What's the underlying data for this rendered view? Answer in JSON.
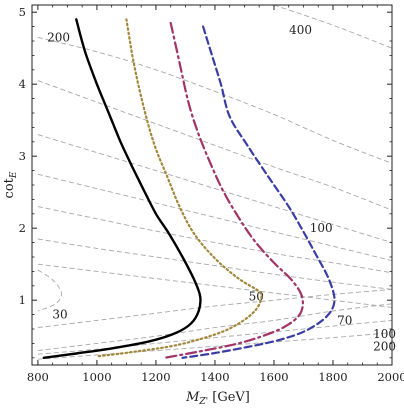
{
  "chart_data": {
    "type": "line",
    "xlabel": "M",
    "xlabel_sub": "Z'",
    "xlabel_unit": "[GeV]",
    "ylabel": "cot",
    "ylabel_sub": "E",
    "xlim": [
      780,
      2000
    ],
    "ylim": [
      0.1,
      5.1
    ],
    "xticks": [
      800,
      1000,
      1200,
      1400,
      1600,
      1800,
      2000
    ],
    "yticks": [
      1,
      2,
      3,
      4,
      5
    ],
    "grid": false,
    "colors": {
      "solid": "#000000",
      "dotted": "#a2873a",
      "dashdot": "#a13367",
      "dashed": "#3a3da3",
      "contour": "#a8a8a8"
    },
    "series": [
      {
        "style": "solid",
        "points": [
          [
            930,
            4.9
          ],
          [
            960,
            4.45
          ],
          [
            1000,
            4.0
          ],
          [
            1040,
            3.6
          ],
          [
            1080,
            3.2
          ],
          [
            1120,
            2.85
          ],
          [
            1160,
            2.52
          ],
          [
            1200,
            2.2
          ],
          [
            1245,
            1.92
          ],
          [
            1290,
            1.6
          ],
          [
            1330,
            1.28
          ],
          [
            1350,
            1.05
          ],
          [
            1345,
            0.85
          ],
          [
            1320,
            0.68
          ],
          [
            1270,
            0.55
          ],
          [
            1180,
            0.43
          ],
          [
            1050,
            0.33
          ],
          [
            930,
            0.26
          ],
          [
            820,
            0.2
          ]
        ]
      },
      {
        "style": "dotted",
        "points": [
          [
            1100,
            4.9
          ],
          [
            1120,
            4.4
          ],
          [
            1140,
            4.0
          ],
          [
            1170,
            3.5
          ],
          [
            1200,
            3.1
          ],
          [
            1240,
            2.7
          ],
          [
            1280,
            2.3
          ],
          [
            1330,
            1.92
          ],
          [
            1400,
            1.58
          ],
          [
            1480,
            1.3
          ],
          [
            1550,
            1.12
          ],
          [
            1555,
            1.0
          ],
          [
            1535,
            0.85
          ],
          [
            1490,
            0.7
          ],
          [
            1430,
            0.57
          ],
          [
            1350,
            0.46
          ],
          [
            1250,
            0.36
          ],
          [
            1100,
            0.27
          ],
          [
            1000,
            0.22
          ]
        ]
      },
      {
        "style": "dashdot",
        "points": [
          [
            1250,
            4.85
          ],
          [
            1280,
            4.3
          ],
          [
            1310,
            3.75
          ],
          [
            1345,
            3.3
          ],
          [
            1390,
            2.85
          ],
          [
            1430,
            2.5
          ],
          [
            1480,
            2.15
          ],
          [
            1535,
            1.82
          ],
          [
            1600,
            1.52
          ],
          [
            1660,
            1.28
          ],
          [
            1695,
            1.05
          ],
          [
            1690,
            0.82
          ],
          [
            1640,
            0.64
          ],
          [
            1560,
            0.5
          ],
          [
            1470,
            0.39
          ],
          [
            1350,
            0.29
          ],
          [
            1230,
            0.2
          ]
        ]
      },
      {
        "style": "dashed",
        "points": [
          [
            1360,
            4.8
          ],
          [
            1390,
            4.4
          ],
          [
            1420,
            4.0
          ],
          [
            1450,
            3.55
          ],
          [
            1510,
            3.15
          ],
          [
            1580,
            2.72
          ],
          [
            1650,
            2.3
          ],
          [
            1700,
            1.95
          ],
          [
            1740,
            1.65
          ],
          [
            1785,
            1.3
          ],
          [
            1805,
            1.0
          ],
          [
            1780,
            0.78
          ],
          [
            1710,
            0.58
          ],
          [
            1620,
            0.45
          ],
          [
            1510,
            0.35
          ],
          [
            1390,
            0.26
          ],
          [
            1290,
            0.2
          ]
        ]
      }
    ],
    "contours": [
      {
        "label": "200",
        "points": [
          [
            800,
            4.65
          ],
          [
            1000,
            4.45
          ],
          [
            1200,
            4.2
          ],
          [
            1400,
            3.9
          ],
          [
            1600,
            3.58
          ],
          [
            1800,
            3.22
          ],
          [
            2000,
            2.9
          ]
        ]
      },
      {
        "label": "400",
        "points": [
          [
            1600,
            5.1
          ],
          [
            1800,
            4.82
          ],
          [
            2000,
            4.5
          ]
        ]
      },
      {
        "label": "",
        "points": [
          [
            800,
            4.05
          ],
          [
            1000,
            3.75
          ],
          [
            1200,
            3.45
          ],
          [
            1400,
            3.15
          ],
          [
            1600,
            2.85
          ],
          [
            1800,
            2.57
          ],
          [
            2000,
            2.25
          ]
        ]
      },
      {
        "label": "",
        "points": [
          [
            800,
            3.3
          ],
          [
            1000,
            3.05
          ],
          [
            1200,
            2.8
          ],
          [
            1400,
            2.55
          ],
          [
            1600,
            2.3
          ],
          [
            1800,
            2.05
          ],
          [
            2000,
            1.8
          ]
        ]
      },
      {
        "label": "",
        "points": [
          [
            800,
            2.75
          ],
          [
            1000,
            2.55
          ],
          [
            1200,
            2.35
          ],
          [
            1400,
            2.15
          ],
          [
            1600,
            1.95
          ],
          [
            1800,
            1.75
          ],
          [
            2000,
            1.55
          ]
        ]
      },
      {
        "label": "100",
        "points": [
          [
            800,
            2.3
          ],
          [
            1000,
            2.13
          ],
          [
            1200,
            1.96
          ],
          [
            1400,
            1.8
          ],
          [
            1600,
            1.65
          ],
          [
            1800,
            1.52
          ],
          [
            2000,
            1.38
          ]
        ]
      },
      {
        "label": "",
        "points": [
          [
            800,
            1.85
          ],
          [
            1000,
            1.72
          ],
          [
            1200,
            1.6
          ],
          [
            1400,
            1.48
          ],
          [
            1600,
            1.36
          ],
          [
            1800,
            1.25
          ],
          [
            2000,
            1.15
          ]
        ]
      },
      {
        "label": "",
        "points": [
          [
            800,
            1.5
          ],
          [
            1000,
            1.4
          ],
          [
            1200,
            1.3
          ],
          [
            1400,
            1.2
          ],
          [
            1600,
            1.1
          ],
          [
            1800,
            1.0
          ],
          [
            2000,
            0.9
          ]
        ]
      },
      {
        "label": "70",
        "points": [
          [
            800,
            0.3
          ],
          [
            1000,
            0.4
          ],
          [
            1200,
            0.5
          ],
          [
            1400,
            0.62
          ],
          [
            1600,
            0.72
          ],
          [
            1800,
            0.85
          ],
          [
            2000,
            0.95
          ]
        ]
      },
      {
        "label": "100",
        "points": [
          [
            800,
            0.25
          ],
          [
            1000,
            0.32
          ],
          [
            1200,
            0.4
          ],
          [
            1400,
            0.48
          ],
          [
            1600,
            0.56
          ],
          [
            1800,
            0.64
          ],
          [
            2000,
            0.72
          ]
        ]
      },
      {
        "label": "200",
        "points": [
          [
            800,
            0.18
          ],
          [
            1000,
            0.24
          ],
          [
            1200,
            0.3
          ],
          [
            1400,
            0.36
          ],
          [
            1600,
            0.42
          ],
          [
            1800,
            0.48
          ],
          [
            2000,
            0.55
          ]
        ]
      },
      {
        "label": "30",
        "points": [
          [
            800,
            1.42
          ],
          [
            850,
            1.28
          ],
          [
            880,
            1.1
          ],
          [
            860,
            0.95
          ],
          [
            800,
            0.85
          ]
        ]
      },
      {
        "label": "50",
        "points": [
          [
            800,
            0.62
          ],
          [
            1000,
            0.72
          ],
          [
            1200,
            0.82
          ],
          [
            1400,
            0.92
          ],
          [
            1600,
            1.0
          ],
          [
            1800,
            1.08
          ],
          [
            2000,
            1.15
          ]
        ]
      }
    ],
    "contour_label_positions": [
      {
        "text": "200",
        "x": 870,
        "y": 4.65
      },
      {
        "text": "400",
        "x": 1690,
        "y": 4.75
      },
      {
        "text": "100",
        "x": 1760,
        "y": 2.0
      },
      {
        "text": "50",
        "x": 1540,
        "y": 1.05
      },
      {
        "text": "70",
        "x": 1840,
        "y": 0.72
      },
      {
        "text": "30",
        "x": 875,
        "y": 0.8
      },
      {
        "text": "100",
        "x": 1975,
        "y": 0.53
      },
      {
        "text": "200",
        "x": 1975,
        "y": 0.36
      }
    ]
  }
}
